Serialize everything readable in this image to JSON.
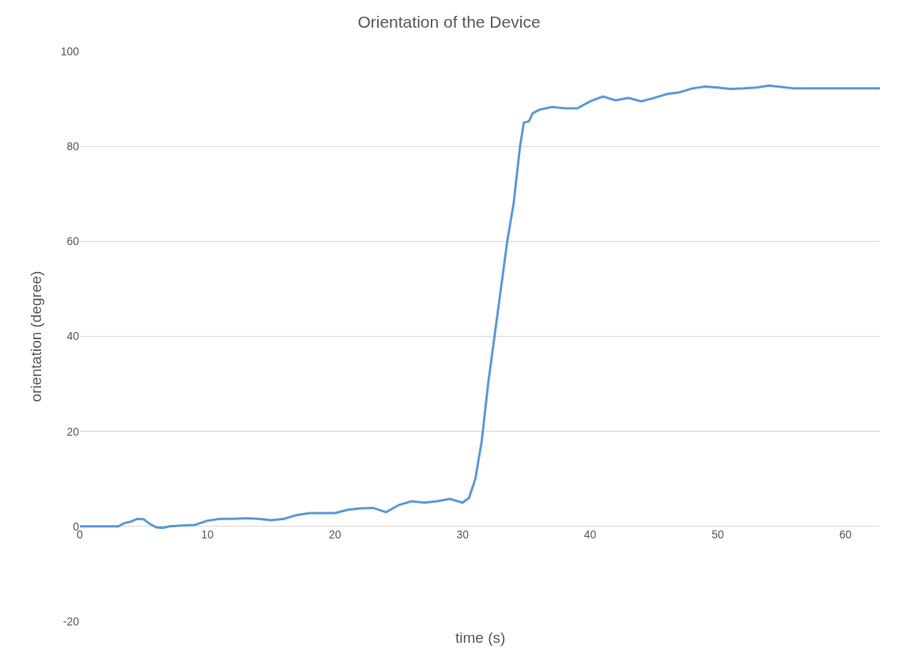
{
  "chart_data": {
    "type": "line",
    "title": "Orientation of the Device",
    "xlabel": "time (s)",
    "ylabel": "orientation (degree)",
    "xlim": [
      0,
      62.7
    ],
    "xticks": [
      0,
      10,
      20,
      30,
      40,
      50,
      60
    ],
    "ylim": [
      -20,
      100
    ],
    "yticks": [
      -20,
      0,
      20,
      40,
      60,
      80,
      100
    ],
    "grid": "y",
    "marker": "none",
    "line_style": "solid",
    "series": [
      {
        "color": "#5b9bd5",
        "x": [
          0,
          3,
          3.5,
          4,
          4.5,
          5,
          5.5,
          6,
          6.5,
          7,
          8,
          9,
          10,
          11,
          12,
          13,
          14,
          15,
          16,
          17,
          18,
          19,
          20,
          21,
          22,
          23,
          24,
          25,
          26,
          27,
          28,
          29,
          30,
          30.5,
          31,
          31.5,
          32,
          32.5,
          33,
          33.5,
          34,
          34.5,
          34.8,
          35.2,
          35.5,
          36,
          37,
          38,
          39,
          40,
          41,
          42,
          43,
          44,
          45,
          46,
          47,
          48,
          49,
          50,
          51,
          52,
          53,
          54,
          55,
          56,
          62.7
        ],
        "values": [
          0,
          0,
          0.7,
          1,
          1.6,
          1.5,
          0.5,
          -0.2,
          -0.3,
          0,
          0.2,
          0.3,
          1.2,
          1.6,
          1.6,
          1.7,
          1.6,
          1.3,
          1.6,
          2.4,
          2.8,
          2.8,
          2.8,
          3.5,
          3.8,
          3.9,
          3,
          4.5,
          5.3,
          5,
          5.3,
          5.8,
          5,
          6,
          10,
          18,
          30,
          40,
          50,
          60,
          68,
          80,
          85,
          85.3,
          87,
          87.7,
          88.3,
          88,
          88,
          89.5,
          90.5,
          89.7,
          90.2,
          89.5,
          90.2,
          91,
          91.4,
          92.2,
          92.6,
          92.4,
          92.1,
          92.2,
          92.4,
          92.8,
          92.5,
          92.2,
          92.2
        ]
      }
    ]
  }
}
